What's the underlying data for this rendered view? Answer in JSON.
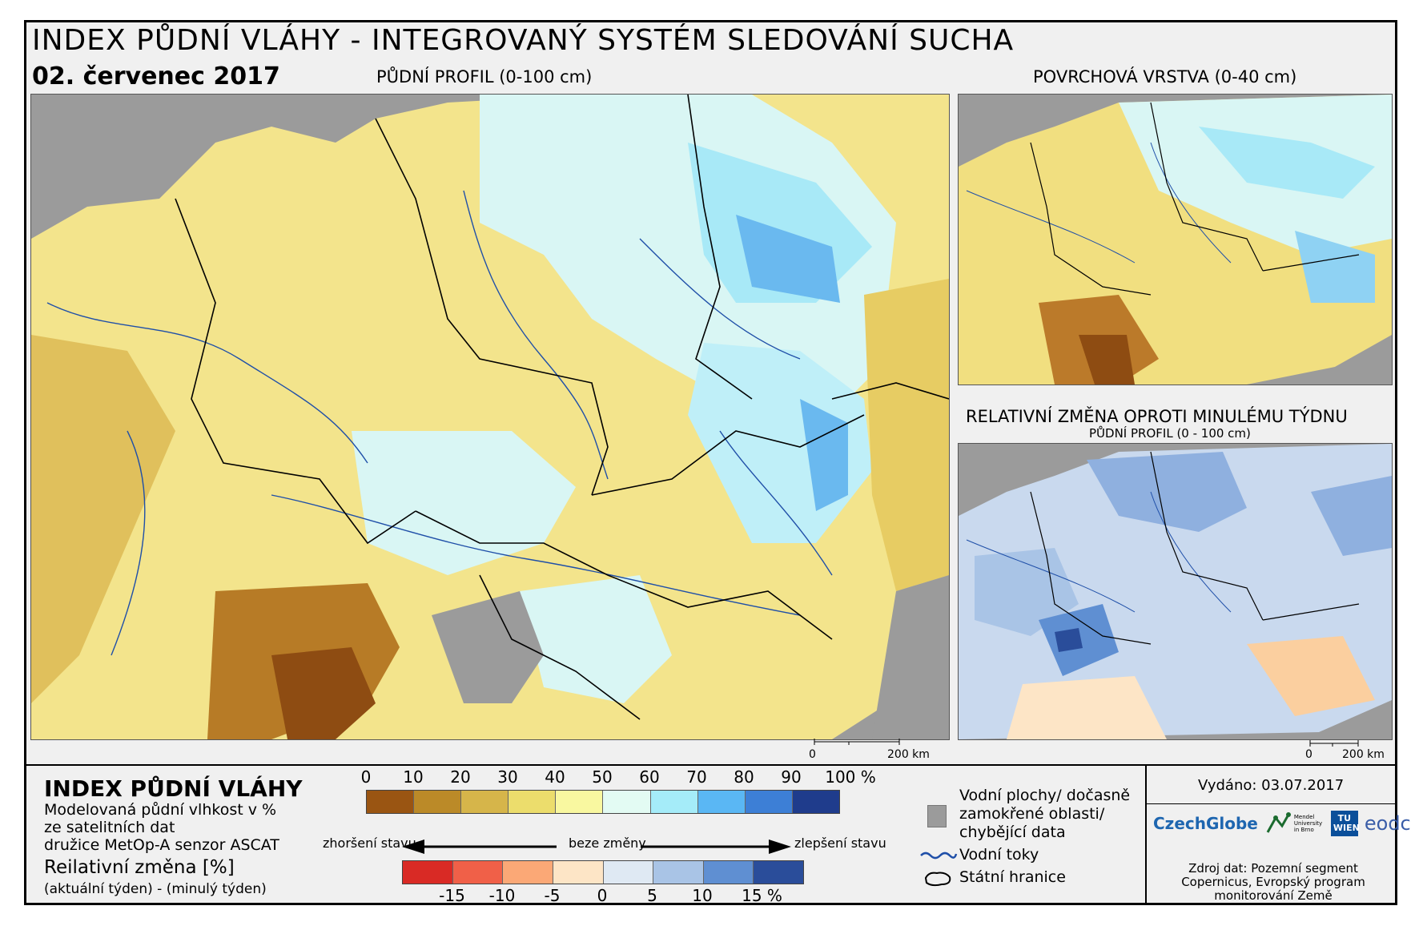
{
  "title": "INDEX PŮDNÍ VLÁHY - INTEGROVANÝ SYSTÉM SLEDOVÁNÍ SUCHA",
  "date": "02. červenec 2017",
  "main_map": {
    "label": "PŮDNÍ PROFIL (0-100 cm)",
    "scale": {
      "zero": "0",
      "end": "200 km"
    }
  },
  "surface_map": {
    "label": "POVRCHOVÁ VRSTVA (0-40 cm)"
  },
  "change_map": {
    "label": "RELATIVNÍ ZMĚNA OPROTI MINULÉMU TÝDNU",
    "sublabel": "PŮDNÍ PROFIL (0 - 100 cm)",
    "scale": {
      "zero": "0",
      "end": "200 km"
    }
  },
  "legend": {
    "title": "INDEX PŮDNÍ VLÁHY",
    "desc_lines": [
      "Modelovaná půdní vlhkost v %",
      "ze satelitních dat",
      "družice MetOp-A senzor ASCAT"
    ],
    "change_title": "Reilativní změna [%]",
    "change_desc": "(aktuální týden) - (minulý týden)",
    "moisture_ticks": [
      "0",
      "10",
      "20",
      "30",
      "40",
      "50",
      "60",
      "70",
      "80",
      "90",
      "100 %"
    ],
    "moisture_colors": [
      "#9a5512",
      "#bb8a28",
      "#d6b54a",
      "#ecdd6c",
      "#f9f8a0",
      "#e3fbf3",
      "#a5ecf9",
      "#5ab7f4",
      "#3d7fd6",
      "#1f3c8c"
    ],
    "worse": "zhoršení stavu",
    "same": "beze změny",
    "better": "zlepšení stavu",
    "change_ticks": [
      "-15",
      "-10",
      "-5",
      "0",
      "5",
      "10",
      "15 %"
    ],
    "change_colors": [
      "#d92a25",
      "#f06048",
      "#fba876",
      "#fde5c6",
      "#dfe9f3",
      "#a9c4e6",
      "#5f8fd2",
      "#2a4d9a"
    ],
    "water_bodies": [
      "Vodní plochy/ dočasně",
      "zamokřené oblasti/",
      "chybějící data"
    ],
    "rivers": "Vodní toky",
    "borders": "Státní hranice",
    "colors": {
      "rivers": "#1f4fa8",
      "missing": "#9b9b9b"
    }
  },
  "issued": "Vydáno: 03.07.2017",
  "logos": [
    "CzechGlobe",
    "Mendel University in Brno",
    "TU WIEN",
    "eodc"
  ],
  "source_lines": [
    "Zdroj dat: Pozemní segment",
    "Copernicus, Evropský program",
    "monitorování Země"
  ]
}
